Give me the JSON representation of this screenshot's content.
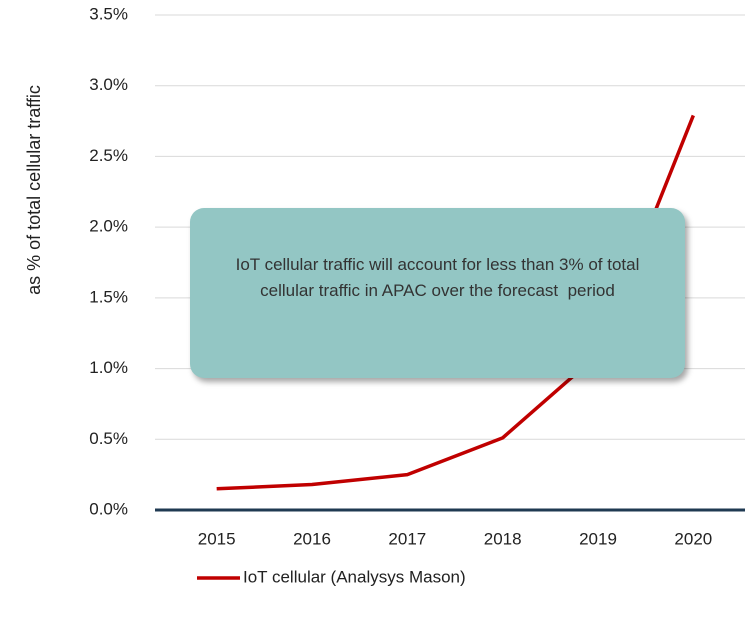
{
  "chart_data": {
    "type": "line",
    "ylabel": "as % of total cellular traffic",
    "categories": [
      "2015",
      "2016",
      "2017",
      "2018",
      "2019",
      "2020"
    ],
    "series": [
      {
        "name": "IoT cellular (Analysys Mason)",
        "color": "#c00000",
        "values": [
          0.15,
          0.18,
          0.25,
          0.51,
          1.1,
          2.79
        ]
      }
    ],
    "ylim": [
      0,
      3.5
    ],
    "yticks": [
      {
        "value": 0,
        "label": "0.0%"
      },
      {
        "value": 0.5,
        "label": "0.5%"
      },
      {
        "value": 1,
        "label": "1.0%"
      },
      {
        "value": 1.5,
        "label": "1.5%"
      },
      {
        "value": 2,
        "label": "2.0%"
      },
      {
        "value": 2.5,
        "label": "2.5%"
      },
      {
        "value": 3,
        "label": "3.0%"
      },
      {
        "value": 3.5,
        "label": "3.5%"
      }
    ],
    "grid": true,
    "legend": "bottom",
    "annotation": "IoT cellular traffic will account for less than 3% of total cellular traffic in APAC over the forecast  period"
  }
}
